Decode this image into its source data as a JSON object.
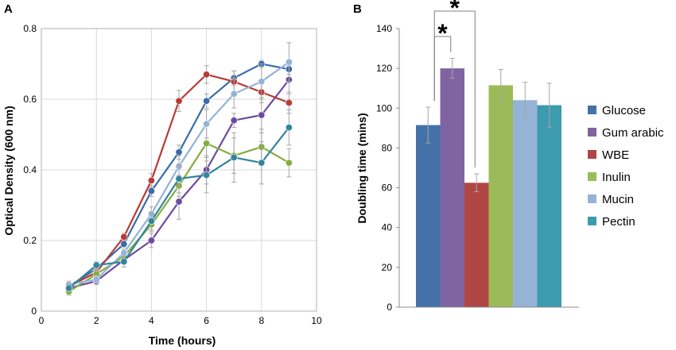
{
  "chart_data": [
    {
      "panel": "A",
      "type": "line",
      "title": "",
      "xlabel": "Time (hours)",
      "ylabel": "Optical Density (600 nm)",
      "xlim": [
        0,
        10
      ],
      "ylim": [
        0,
        0.8
      ],
      "x_ticks": [
        0,
        2,
        4,
        6,
        8,
        10
      ],
      "y_ticks": [
        0,
        0.2,
        0.4,
        0.6,
        0.8
      ],
      "x_tick_labels": [
        "0",
        "2",
        "4",
        "6",
        "8",
        "10"
      ],
      "y_tick_labels": [
        "0",
        "0.2",
        "0.4",
        "0.6",
        "0.8"
      ],
      "grid": true,
      "x": [
        1,
        2,
        3,
        4,
        5,
        6,
        7,
        8,
        9
      ],
      "series": [
        {
          "name": "Glucose",
          "color": "#3B6CA8",
          "values": [
            0.07,
            0.12,
            0.19,
            0.34,
            0.45,
            0.595,
            0.66,
            0.7,
            0.685
          ],
          "errors": [
            0.01,
            0.01,
            0.01,
            0.015,
            0.02,
            0.02,
            0.02,
            0.01,
            0.015
          ]
        },
        {
          "name": "Gum arabic",
          "color": "#6E4A9E",
          "values": [
            0.065,
            0.085,
            0.145,
            0.2,
            0.31,
            0.4,
            0.54,
            0.555,
            0.655
          ],
          "errors": [
            0.01,
            0.01,
            0.01,
            0.02,
            0.05,
            0.04,
            0.02,
            0.05,
            0.04
          ]
        },
        {
          "name": "WBE",
          "color": "#B83A38",
          "values": [
            0.07,
            0.11,
            0.21,
            0.37,
            0.595,
            0.67,
            0.65,
            0.62,
            0.59
          ],
          "errors": [
            0.01,
            0.01,
            0.01,
            0.02,
            0.03,
            0.025,
            0.03,
            0.03,
            0.03
          ]
        },
        {
          "name": "Inulin",
          "color": "#86AC3E",
          "values": [
            0.055,
            0.105,
            0.155,
            0.245,
            0.355,
            0.475,
            0.44,
            0.465,
            0.42
          ],
          "errors": [
            0.01,
            0.01,
            0.015,
            0.02,
            0.03,
            0.05,
            0.05,
            0.05,
            0.04
          ]
        },
        {
          "name": "Mucin",
          "color": "#95B3D7",
          "values": [
            0.075,
            0.09,
            0.165,
            0.275,
            0.41,
            0.53,
            0.615,
            0.65,
            0.705
          ],
          "errors": [
            0.01,
            0.01,
            0.01,
            0.02,
            0.03,
            0.04,
            0.04,
            0.05,
            0.055
          ]
        },
        {
          "name": "Pectin",
          "color": "#31859C",
          "values": [
            0.065,
            0.13,
            0.14,
            0.255,
            0.375,
            0.385,
            0.435,
            0.42,
            0.52
          ],
          "errors": [
            0.01,
            0.01,
            0.015,
            0.025,
            0.04,
            0.05,
            0.07,
            0.06,
            0.05
          ]
        }
      ]
    },
    {
      "panel": "B",
      "type": "bar",
      "title": "",
      "xlabel": "",
      "ylabel": "Doubling time (mins)",
      "ylim": [
        0,
        140
      ],
      "y_ticks": [
        0,
        20,
        40,
        60,
        80,
        100,
        120,
        140
      ],
      "y_tick_labels": [
        "0",
        "20",
        "40",
        "60",
        "80",
        "100",
        "120",
        "140"
      ],
      "grid": false,
      "legend": "right",
      "categories": [
        "Glucose",
        "Gum arabic",
        "WBE",
        "Inulin",
        "Mucin",
        "Pectin"
      ],
      "values": [
        91.5,
        120,
        62.5,
        111.5,
        104,
        101.5
      ],
      "errors": [
        9,
        5,
        4.5,
        8,
        9,
        11
      ],
      "colors": [
        "#4472A8",
        "#8064A2",
        "#B04644",
        "#9BBB59",
        "#95B3D7",
        "#3C9BAF"
      ],
      "significance": [
        {
          "pair": [
            "Glucose",
            "Gum arabic"
          ],
          "label": "*"
        },
        {
          "pair": [
            "Glucose",
            "WBE"
          ],
          "label": "*"
        }
      ]
    }
  ]
}
